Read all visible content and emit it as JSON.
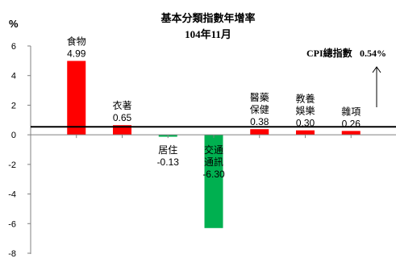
{
  "chart_data": {
    "type": "bar",
    "title": "基本分類指數年增率",
    "subtitle": "104年11月",
    "ylabel": "%",
    "ylim": [
      -8,
      6
    ],
    "yticks": [
      6,
      4,
      2,
      0,
      -2,
      -4,
      -6,
      -8
    ],
    "categories": [
      [
        "食物"
      ],
      [
        "衣著"
      ],
      [
        "居住"
      ],
      [
        "交通",
        "通訊"
      ],
      [
        "醫藥",
        "保健"
      ],
      [
        "教養",
        "娛樂"
      ],
      [
        "雜項"
      ]
    ],
    "values": [
      4.99,
      0.65,
      -0.13,
      -6.3,
      0.38,
      0.3,
      0.26
    ],
    "value_labels": [
      "4.99",
      "0.65",
      "-0.13",
      "-6.30",
      "0.38",
      "0.30",
      "0.26"
    ],
    "colors": {
      "positive": "#ff0000",
      "negative": "#00b050",
      "reference_line": "#000000",
      "axis": "#808080"
    },
    "reference": {
      "value": 0.54,
      "label": "CPI總指數",
      "value_label": "0.54%"
    }
  }
}
